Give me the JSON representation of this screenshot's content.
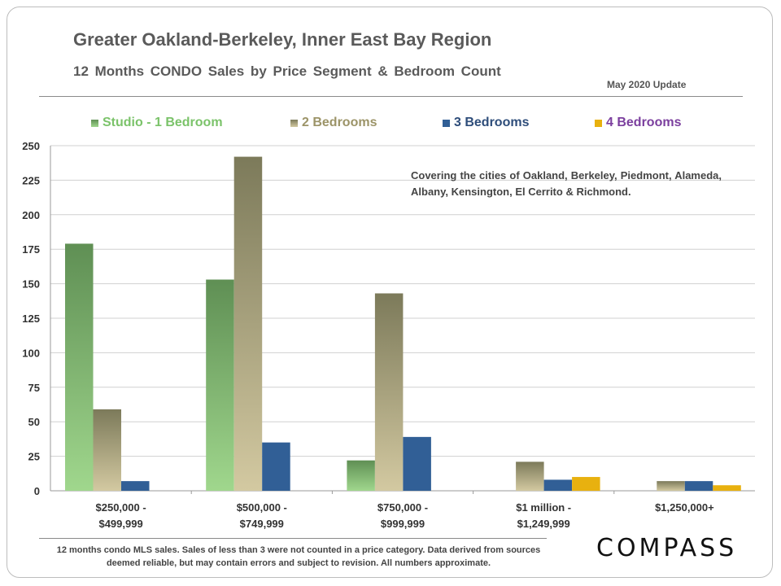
{
  "header": {
    "title": "Greater Oakland-Berkeley, Inner East Bay Region",
    "subtitle": "12 Months CONDO Sales by Price Segment & Bedroom Count",
    "update": "May 2020 Update"
  },
  "note": "Covering the cities of Oakland, Berkeley, Piedmont, Alameda, Albany, Kensington, El Cerrito & Richmond.",
  "footnote": "12 months condo MLS sales. Sales of less than 3 were not counted in a price category. Data derived from sources deemed reliable, but may contain errors and subject to revision. All numbers approximate.",
  "logo": "COMPASS",
  "chart_data": {
    "type": "bar",
    "categories": [
      [
        "$250,000 -",
        "$499,999"
      ],
      [
        "$500,000 -",
        "$749,999"
      ],
      [
        "$750,000 -",
        "$999,999"
      ],
      [
        "$1 million -",
        "$1,249,999"
      ],
      [
        "$1,250,000+"
      ]
    ],
    "series": [
      {
        "name": "Studio - 1 Bedroom",
        "values": [
          179,
          153,
          22,
          0,
          0
        ],
        "color": "#5f8f54",
        "color_light": "#a0d78d",
        "label_color": "#7bc36a"
      },
      {
        "name": "2 Bedrooms",
        "values": [
          59,
          242,
          143,
          21,
          7
        ],
        "color": "#7c7a5a",
        "color_light": "#d3c9a1",
        "label_color": "#9c9468"
      },
      {
        "name": "3 Bedrooms",
        "values": [
          7,
          35,
          39,
          8,
          7
        ],
        "color": "#315f96",
        "color_light": "#315f96",
        "label_color": "#2e4d7a"
      },
      {
        "name": "4 Bedrooms",
        "values": [
          0,
          0,
          0,
          10,
          4
        ],
        "color": "#e8b10f",
        "color_light": "#e8b10f",
        "label_color": "#7b3f9e"
      }
    ],
    "ylim": [
      0,
      250
    ],
    "yticks": [
      0,
      25,
      50,
      75,
      100,
      125,
      150,
      175,
      200,
      225,
      250
    ],
    "grid": true,
    "legend_position": "top"
  }
}
